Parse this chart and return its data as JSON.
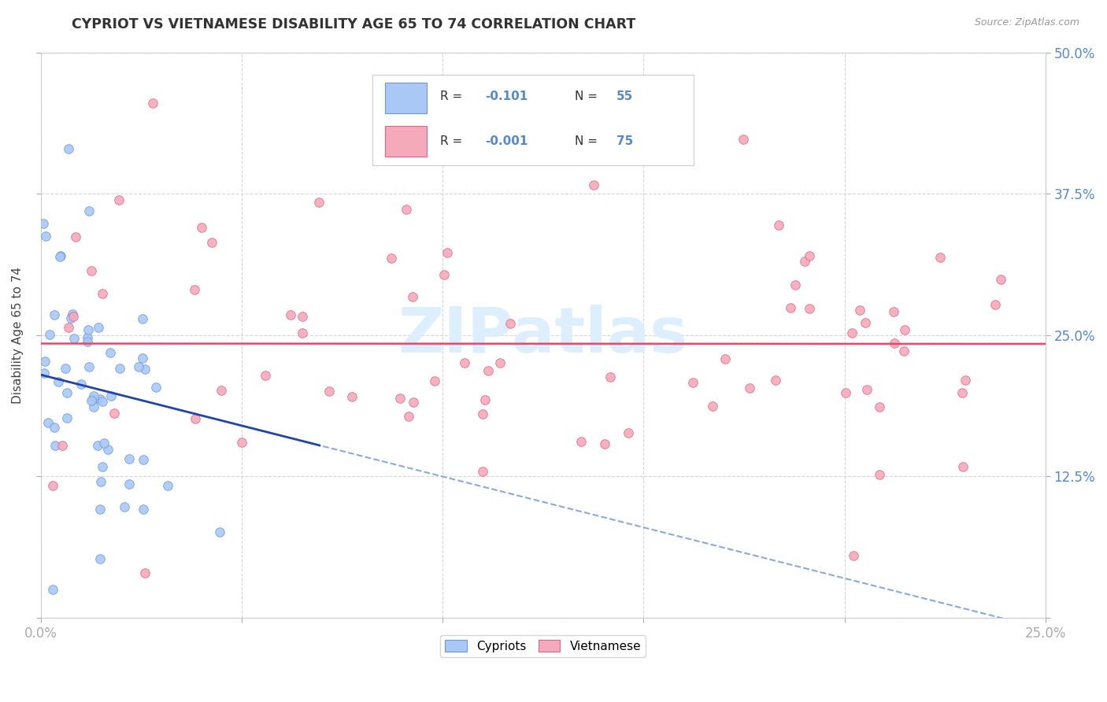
{
  "title": "CYPRIOT VS VIETNAMESE DISABILITY AGE 65 TO 74 CORRELATION CHART",
  "ylabel": "Disability Age 65 to 74",
  "source": "Source: ZipAtlas.com",
  "xlim": [
    0.0,
    0.25
  ],
  "ylim": [
    0.0,
    0.5
  ],
  "xticks": [
    0.0,
    0.05,
    0.1,
    0.15,
    0.2,
    0.25
  ],
  "xticklabels": [
    "0.0%",
    "",
    "",
    "",
    "",
    "25.0%"
  ],
  "yticks": [
    0.0,
    0.125,
    0.25,
    0.375,
    0.5
  ],
  "yticklabels": [
    "",
    "12.5%",
    "25.0%",
    "37.5%",
    "50.0%"
  ],
  "cypriot_R": -0.101,
  "cypriot_N": 55,
  "vietnamese_R": -0.001,
  "vietnamese_N": 75,
  "cypriot_color": "#aac8f5",
  "vietnamese_color": "#f5aabb",
  "cypriot_edge_color": "#6699dd",
  "vietnamese_edge_color": "#dd6688",
  "tick_color": "#5588cc",
  "grid_color": "#cccccc",
  "watermark_color": "#ddeeff",
  "legend_border_color": "#cccccc",
  "viet_line_color": "#ee4466",
  "cyp_line_solid_color": "#2244aa",
  "cyp_line_dash_color": "#88aadd"
}
